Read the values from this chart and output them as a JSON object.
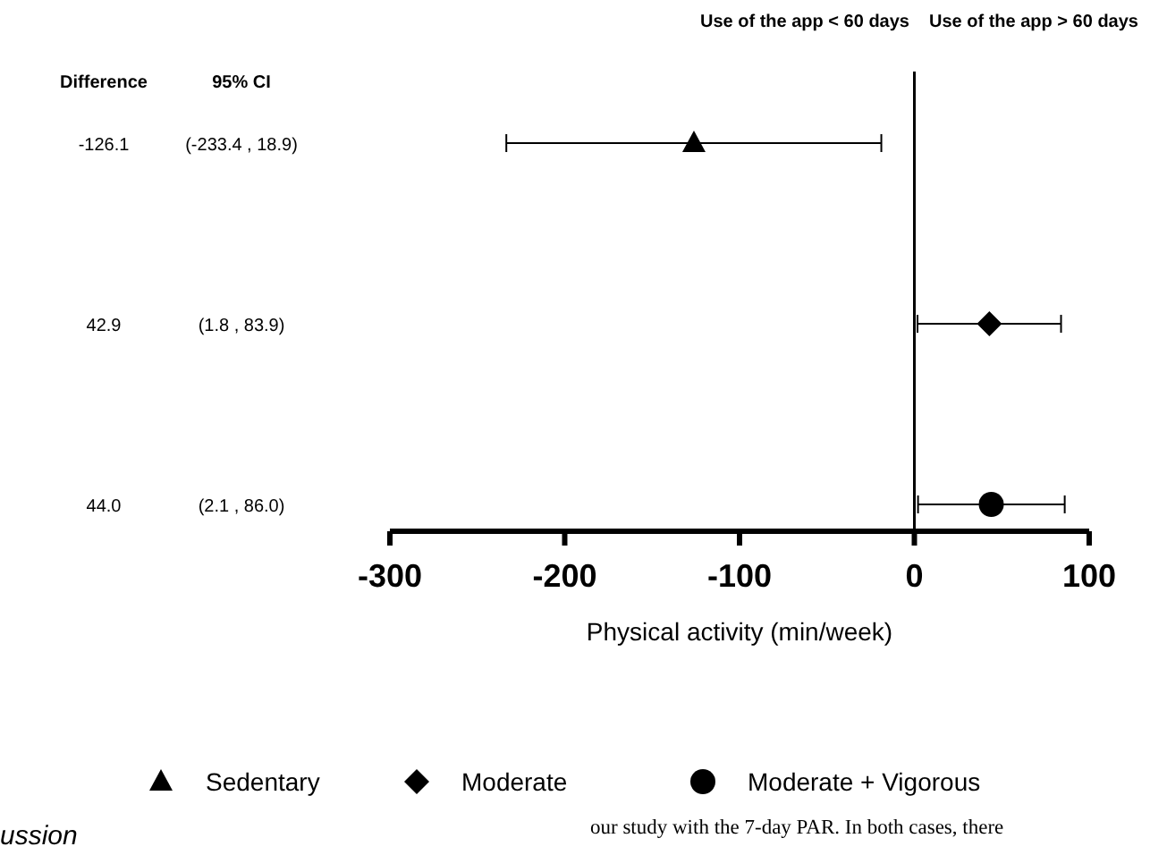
{
  "chart_data": {
    "type": "scatter",
    "orientation": "horizontal",
    "xlabel": "Physical activity (min/week)",
    "categories": [
      null,
      null,
      null
    ],
    "series": [
      {
        "name": "Sedentary",
        "color": "#000000",
        "marker": "triangle",
        "values": [
          -126.1,
          null,
          null
        ],
        "errors": [
          [
            -233.4,
            -18.9
          ],
          null,
          null
        ]
      },
      {
        "name": "Moderate",
        "color": "#000000",
        "marker": "diamond",
        "values": [
          null,
          42.9,
          null
        ],
        "errors": [
          null,
          [
            1.8,
            83.9
          ],
          null
        ]
      },
      {
        "name": "Moderate + Vigorous",
        "color": "#000000",
        "marker": "circle",
        "values": [
          null,
          null,
          44.0
        ],
        "errors": [
          null,
          null,
          [
            2.1,
            86.0
          ]
        ]
      }
    ],
    "value_labels": [
      "-126.1",
      "42.9",
      "44.0"
    ],
    "xlim": [
      -300,
      100
    ],
    "xticks": [
      -300,
      -200,
      -100,
      0,
      100
    ],
    "ref_lines": [
      {
        "axis": "x",
        "value": 0
      }
    ],
    "legend": "bottom",
    "grid": false,
    "annotations": [
      "Use of the app  < 60 days",
      "Use of the app > 60 days",
      "Difference",
      "95% CI",
      "(-233.4 , 18.9)",
      "(1.8 , 83.9)",
      "(2.1 , 86.0)",
      "ussion",
      "our study with the 7-day PAR. In both cases, there"
    ]
  }
}
